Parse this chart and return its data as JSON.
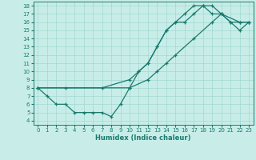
{
  "title": "",
  "xlabel": "Humidex (Indice chaleur)",
  "bg_color": "#c8ede8",
  "line_color": "#1a7a6e",
  "grid_color": "#a0d8d0",
  "xlim": [
    -0.5,
    23.5
  ],
  "ylim": [
    3.5,
    18.5
  ],
  "xticks": [
    0,
    1,
    2,
    3,
    4,
    5,
    6,
    7,
    8,
    9,
    10,
    11,
    12,
    13,
    14,
    15,
    16,
    17,
    18,
    19,
    20,
    21,
    22,
    23
  ],
  "yticks": [
    4,
    5,
    6,
    7,
    8,
    9,
    10,
    11,
    12,
    13,
    14,
    15,
    16,
    17,
    18
  ],
  "series1_x": [
    0,
    1,
    2,
    3,
    4,
    5,
    6,
    7,
    8,
    9,
    10,
    11,
    12,
    13,
    14,
    15,
    16,
    17,
    18,
    19,
    20,
    21,
    22,
    23
  ],
  "series1_y": [
    8,
    7,
    6,
    6,
    5,
    5,
    5,
    5,
    4.5,
    6,
    8,
    10,
    11,
    13,
    15,
    16,
    17,
    18,
    18,
    17,
    17,
    16,
    16,
    16
  ],
  "series2_x": [
    0,
    3,
    7,
    10,
    11,
    12,
    13,
    14,
    15,
    16,
    17,
    18,
    19,
    20,
    21,
    22,
    23
  ],
  "series2_y": [
    8,
    8,
    8,
    9,
    10,
    11,
    13,
    15,
    16,
    16,
    17,
    18,
    18,
    17,
    16,
    15,
    16
  ],
  "series3_x": [
    0,
    10,
    12,
    13,
    14,
    15,
    17,
    19,
    20,
    22,
    23
  ],
  "series3_y": [
    8,
    8,
    9,
    10,
    11,
    12,
    14,
    16,
    17,
    16,
    16
  ]
}
